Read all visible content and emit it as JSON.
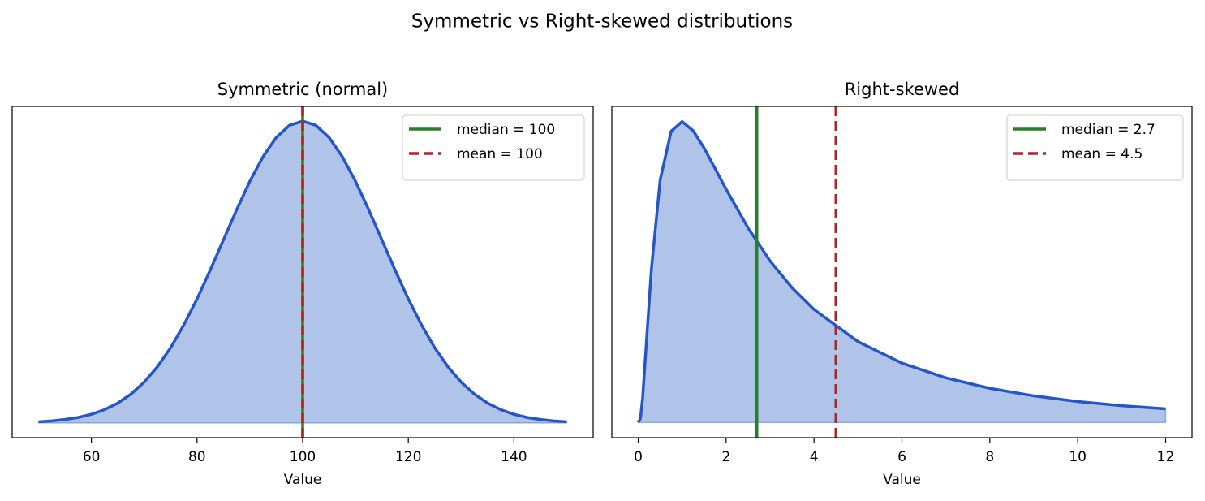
{
  "title": "Symmetric vs Right-skewed distributions",
  "chart_data": [
    {
      "type": "area",
      "title": "Symmetric (normal)",
      "x_label": "Value",
      "x": [
        50,
        52.5,
        55,
        57.5,
        60,
        62.5,
        65,
        67.5,
        70,
        72.5,
        75,
        77.5,
        80,
        82.5,
        85,
        87.5,
        90,
        92.5,
        95,
        97.5,
        100,
        102.5,
        105,
        107.5,
        110,
        112.5,
        115,
        117.5,
        120,
        122.5,
        125,
        127.5,
        130,
        132.5,
        135,
        137.5,
        140,
        142.5,
        145,
        147.5,
        150
      ],
      "series": [
        {
          "color": "#2456c8",
          "fill": "#b0c4ea",
          "values": [
            0.0001,
            0.00018,
            0.0003,
            0.00048,
            0.00076,
            0.00117,
            0.00175,
            0.00254,
            0.0036,
            0.00495,
            0.00663,
            0.00864,
            0.01093,
            0.01347,
            0.01613,
            0.01879,
            0.0213,
            0.02347,
            0.02516,
            0.02623,
            0.0266,
            0.02623,
            0.02516,
            0.02347,
            0.0213,
            0.01879,
            0.01613,
            0.01347,
            0.01093,
            0.00864,
            0.00663,
            0.00495,
            0.0036,
            0.00254,
            0.00175,
            0.00117,
            0.00076,
            0.00048,
            0.0003,
            0.00018,
            0.0001
          ]
        }
      ],
      "vlines": [
        {
          "name": "median = 100",
          "value": 100,
          "color": "#2a7d2e",
          "style": "solid"
        },
        {
          "name": "mean = 100",
          "value": 100,
          "color": "#b22222",
          "style": "dashed"
        }
      ],
      "xlim": [
        45,
        155
      ],
      "ylim": [
        -0.0013,
        0.0279
      ],
      "xticks": [
        60,
        80,
        100,
        120,
        140
      ],
      "legend": "upper right"
    },
    {
      "type": "area",
      "title": "Right-skewed",
      "x_label": "Value",
      "x": [
        0,
        0.05,
        0.1,
        0.2,
        0.3,
        0.5,
        0.75,
        1,
        1.25,
        1.5,
        2,
        2.5,
        3,
        3.5,
        4,
        5,
        6,
        7,
        8,
        9,
        10,
        11,
        12
      ],
      "series": [
        {
          "color": "#2456c8",
          "fill": "#b0c4ea",
          "values": [
            0,
            0.00328,
            0.0194,
            0.0718,
            0.1239,
            0.1964,
            0.2357,
            0.2435,
            0.2361,
            0.2221,
            0.1888,
            0.1574,
            0.1308,
            0.1091,
            0.0915,
            0.0655,
            0.0481,
            0.0362,
            0.0277,
            0.0216,
            0.01705,
            0.01366,
            0.0111
          ]
        }
      ],
      "vlines": [
        {
          "name": "median = 2.7",
          "value": 2.7,
          "color": "#2a7d2e",
          "style": "solid"
        },
        {
          "name": "mean = 4.5",
          "value": 4.5,
          "color": "#b22222",
          "style": "dashed"
        }
      ],
      "xlim": [
        -0.6,
        12.6
      ],
      "ylim": [
        -0.0122,
        0.2558
      ],
      "xticks": [
        0,
        2,
        4,
        6,
        8,
        10,
        12
      ],
      "legend": "upper right"
    }
  ]
}
